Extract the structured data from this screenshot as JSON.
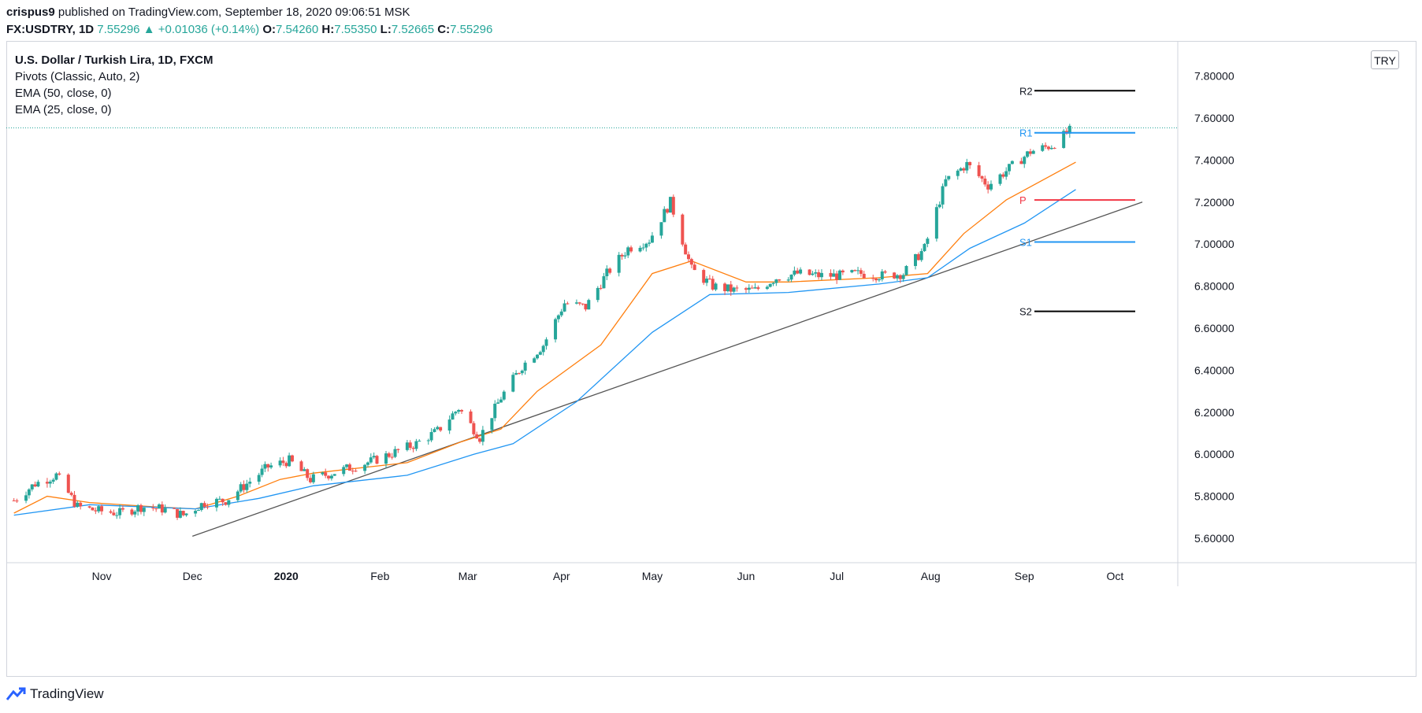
{
  "header": {
    "author": "crispus9",
    "published_text": " published on TradingView.com, September 18, 2020 09:06:51 MSK",
    "symbol": "FX:USDTRY, 1D",
    "last": "7.55296",
    "change": "+0.01036 (+0.14%)",
    "o_label": "O:",
    "o_value": "7.54260",
    "h_label": "H:",
    "h_value": "7.55350",
    "l_label": "L:",
    "l_value": "7.52665",
    "c_label": "C:",
    "c_value": "7.55296"
  },
  "legend": {
    "title": "U.S. Dollar / Turkish Lira, 1D, FXCM",
    "pivots": "Pivots (Classic, Auto, 2)",
    "ema50": "EMA (50, close, 0)",
    "ema25": "EMA (25, close, 0)"
  },
  "currency_button": "TRY",
  "brand": "TradingView",
  "colors": {
    "up": "#26a69a",
    "down": "#ef5350",
    "ema25": "#ff7f0e",
    "ema50": "#2196f3",
    "pivot_p": "#f23645",
    "pivot_s1_r1": "#2196f3",
    "pivot_r2_s2": "#000000",
    "trendline": "#555555"
  },
  "chart_data": {
    "type": "line",
    "title": "U.S. Dollar / Turkish Lira, 1D, FXCM",
    "ylim": [
      5.46,
      7.97
    ],
    "yticks": [
      "7.80000",
      "7.60000",
      "7.40000",
      "7.20000",
      "7.00000",
      "6.80000",
      "6.60000",
      "6.40000",
      "6.20000",
      "6.00000",
      "5.80000",
      "5.60000"
    ],
    "xticks": [
      {
        "label": "Nov",
        "bold": false,
        "date": "2019-11-01"
      },
      {
        "label": "Dec",
        "bold": false,
        "date": "2019-12-01"
      },
      {
        "label": "2020",
        "bold": true,
        "date": "2020-01-01"
      },
      {
        "label": "Feb",
        "bold": false,
        "date": "2020-02-01"
      },
      {
        "label": "Mar",
        "bold": false,
        "date": "2020-03-01"
      },
      {
        "label": "Apr",
        "bold": false,
        "date": "2020-04-01"
      },
      {
        "label": "May",
        "bold": false,
        "date": "2020-05-01"
      },
      {
        "label": "Jun",
        "bold": false,
        "date": "2020-06-01"
      },
      {
        "label": "Jul",
        "bold": false,
        "date": "2020-07-01"
      },
      {
        "label": "Aug",
        "bold": false,
        "date": "2020-08-01"
      },
      {
        "label": "Sep",
        "bold": false,
        "date": "2020-09-01"
      },
      {
        "label": "Oct",
        "bold": false,
        "date": "2020-10-01"
      }
    ],
    "price_series": [
      [
        "2019-10-03",
        5.78
      ],
      [
        "2019-10-10",
        5.86
      ],
      [
        "2019-10-17",
        5.9
      ],
      [
        "2019-10-24",
        5.75
      ],
      [
        "2019-10-31",
        5.73
      ],
      [
        "2019-11-07",
        5.72
      ],
      [
        "2019-11-14",
        5.75
      ],
      [
        "2019-11-21",
        5.74
      ],
      [
        "2019-11-28",
        5.71
      ],
      [
        "2019-12-05",
        5.77
      ],
      [
        "2019-12-12",
        5.78
      ],
      [
        "2019-12-19",
        5.86
      ],
      [
        "2019-12-26",
        5.94
      ],
      [
        "2020-01-02",
        5.97
      ],
      [
        "2020-01-09",
        5.88
      ],
      [
        "2020-01-16",
        5.91
      ],
      [
        "2020-01-23",
        5.94
      ],
      [
        "2020-01-30",
        5.97
      ],
      [
        "2020-02-06",
        6.01
      ],
      [
        "2020-02-13",
        6.05
      ],
      [
        "2020-02-20",
        6.11
      ],
      [
        "2020-02-27",
        6.22
      ],
      [
        "2020-03-05",
        6.08
      ],
      [
        "2020-03-12",
        6.27
      ],
      [
        "2020-03-19",
        6.42
      ],
      [
        "2020-03-26",
        6.52
      ],
      [
        "2020-04-02",
        6.72
      ],
      [
        "2020-04-09",
        6.7
      ],
      [
        "2020-04-16",
        6.86
      ],
      [
        "2020-04-23",
        6.98
      ],
      [
        "2020-04-30",
        7.02
      ],
      [
        "2020-05-07",
        7.2
      ],
      [
        "2020-05-14",
        6.88
      ],
      [
        "2020-05-21",
        6.8
      ],
      [
        "2020-05-28",
        6.78
      ],
      [
        "2020-06-04",
        6.78
      ],
      [
        "2020-06-11",
        6.84
      ],
      [
        "2020-06-18",
        6.86
      ],
      [
        "2020-06-25",
        6.85
      ],
      [
        "2020-07-02",
        6.85
      ],
      [
        "2020-07-09",
        6.86
      ],
      [
        "2020-07-16",
        6.85
      ],
      [
        "2020-07-23",
        6.86
      ],
      [
        "2020-07-30",
        6.98
      ],
      [
        "2020-08-06",
        7.3
      ],
      [
        "2020-08-13",
        7.38
      ],
      [
        "2020-08-20",
        7.28
      ],
      [
        "2020-08-27",
        7.36
      ],
      [
        "2020-09-03",
        7.44
      ],
      [
        "2020-09-10",
        7.47
      ],
      [
        "2020-09-17",
        7.55
      ]
    ],
    "series": [
      {
        "name": "EMA (25, close, 0)",
        "color": "#ff7f0e",
        "points": [
          [
            "2019-10-03",
            5.72
          ],
          [
            "2019-10-14",
            5.8
          ],
          [
            "2019-10-28",
            5.77
          ],
          [
            "2019-11-18",
            5.75
          ],
          [
            "2019-12-02",
            5.74
          ],
          [
            "2019-12-16",
            5.8
          ],
          [
            "2019-12-30",
            5.88
          ],
          [
            "2020-01-10",
            5.91
          ],
          [
            "2020-02-10",
            5.96
          ],
          [
            "2020-02-28",
            6.06
          ],
          [
            "2020-03-12",
            6.12
          ],
          [
            "2020-03-24",
            6.3
          ],
          [
            "2020-04-14",
            6.52
          ],
          [
            "2020-05-01",
            6.86
          ],
          [
            "2020-05-14",
            6.92
          ],
          [
            "2020-06-01",
            6.82
          ],
          [
            "2020-06-15",
            6.82
          ],
          [
            "2020-07-15",
            6.84
          ],
          [
            "2020-07-31",
            6.86
          ],
          [
            "2020-08-12",
            7.05
          ],
          [
            "2020-08-26",
            7.21
          ],
          [
            "2020-09-18",
            7.39
          ]
        ]
      },
      {
        "name": "EMA (50, close, 0)",
        "color": "#2196f3",
        "points": [
          [
            "2019-10-03",
            5.71
          ],
          [
            "2019-10-28",
            5.76
          ],
          [
            "2019-12-02",
            5.74
          ],
          [
            "2019-12-23",
            5.79
          ],
          [
            "2020-01-10",
            5.85
          ],
          [
            "2020-02-10",
            5.9
          ],
          [
            "2020-03-03",
            6.0
          ],
          [
            "2020-03-16",
            6.05
          ],
          [
            "2020-04-06",
            6.25
          ],
          [
            "2020-05-01",
            6.58
          ],
          [
            "2020-05-20",
            6.76
          ],
          [
            "2020-06-15",
            6.77
          ],
          [
            "2020-07-15",
            6.81
          ],
          [
            "2020-07-31",
            6.84
          ],
          [
            "2020-08-14",
            6.98
          ],
          [
            "2020-09-01",
            7.1
          ],
          [
            "2020-09-18",
            7.26
          ]
        ]
      }
    ],
    "trendline": {
      "from": [
        "2019-12-01",
        5.61
      ],
      "to": [
        "2020-10-10",
        7.2
      ]
    },
    "pivots": [
      {
        "label": "R2",
        "value": 7.73,
        "color": "#000000"
      },
      {
        "label": "R1",
        "value": 7.53,
        "color": "#2196f3"
      },
      {
        "label": "P",
        "value": 7.21,
        "color": "#f23645"
      },
      {
        "label": "S1",
        "value": 7.01,
        "color": "#2196f3"
      },
      {
        "label": "S2",
        "value": 6.68,
        "color": "#000000"
      }
    ],
    "last_price": 7.55296,
    "grid": false
  }
}
